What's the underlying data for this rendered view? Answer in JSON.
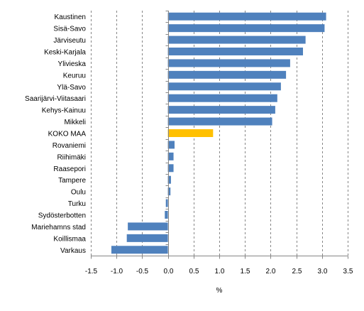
{
  "chart_data": {
    "type": "bar",
    "orientation": "horizontal",
    "categories": [
      "Kaustinen",
      "Sisä-Savo",
      "Järviseutu",
      "Keski-Karjala",
      "Ylivieska",
      "Keuruu",
      "Ylä-Savo",
      "Saarijärvi-Viitasaari",
      "Kehys-Kainuu",
      "Mikkeli",
      "KOKO MAA",
      "Rovaniemi",
      "Riihimäki",
      "Raasepori",
      "Tampere",
      "Oulu",
      "Turku",
      "Sydösterbotten",
      "Mariehamns stad",
      "Koillismaa",
      "Varkaus"
    ],
    "values": [
      3.08,
      3.05,
      2.68,
      2.63,
      2.38,
      2.3,
      2.2,
      2.13,
      2.09,
      2.03,
      0.88,
      0.13,
      0.11,
      0.11,
      0.06,
      0.05,
      -0.04,
      -0.06,
      -0.78,
      -0.8,
      -1.1
    ],
    "highlight_category": "KOKO MAA",
    "colors": {
      "bar": "#4f81bd",
      "highlight": "#ffc000",
      "grid": "#868686",
      "axis": "#868686"
    },
    "xlabel": "%",
    "ylabel": "",
    "title": "",
    "xlim": [
      -1.5,
      3.5
    ],
    "xticks": [
      -1.5,
      -1.0,
      -0.5,
      0.0,
      0.5,
      1.0,
      1.5,
      2.0,
      2.5,
      3.0,
      3.5
    ],
    "xtick_labels": [
      "-1.5",
      "-1.0",
      "-0.5",
      "0.0",
      "0.5",
      "1.0",
      "1.5",
      "2.0",
      "2.5",
      "3.0",
      "3.5"
    ],
    "grid": "vertical-dashed",
    "legend": "none"
  }
}
